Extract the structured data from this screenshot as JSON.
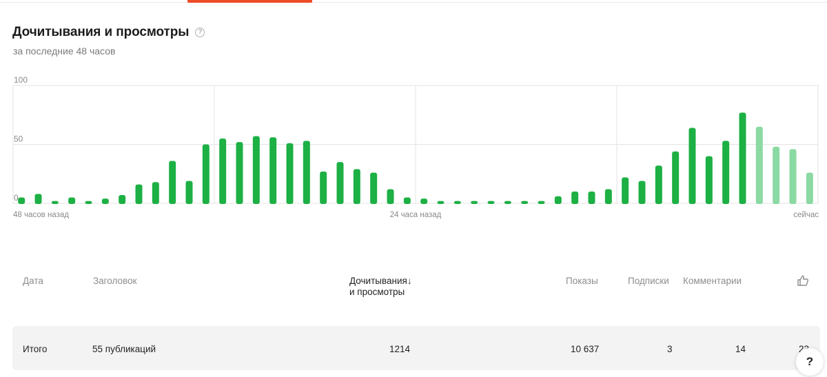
{
  "header": {
    "title": "Дочитывания и просмотры",
    "help_glyph": "?",
    "subtitle": "за последние 48 часов"
  },
  "chart_data": {
    "type": "bar",
    "title": "Дочитывания и просмотры",
    "subtitle": "за последние 48 часов",
    "ylim": [
      0,
      100
    ],
    "y_ticks": [
      "100",
      "50",
      "0"
    ],
    "x_tick_labels": [
      "48 часов назад",
      "24 часа назад",
      "сейчас"
    ],
    "grid": true,
    "colors": {
      "bar": "#1db044",
      "bar_partial": "#8bd9a3",
      "grid": "#e3e3e3"
    },
    "partial_from_index": 44,
    "values": [
      5,
      8,
      2,
      5,
      2,
      4,
      7,
      16,
      18,
      36,
      19,
      50,
      55,
      52,
      57,
      56,
      51,
      53,
      27,
      35,
      29,
      26,
      12,
      5,
      4,
      2,
      2,
      2,
      2,
      2,
      2,
      2,
      6,
      10,
      10,
      12,
      22,
      19,
      32,
      44,
      64,
      40,
      53,
      77,
      65,
      48,
      46,
      26
    ]
  },
  "table": {
    "columns": {
      "date": "Дата",
      "title": "Заголовок",
      "reads_line1": "Дочитывания",
      "reads_arrow": "↓",
      "reads_line2": "и просмотры",
      "impressions": "Показы",
      "subscriptions": "Подписки",
      "comments": "Комментарии",
      "likes_icon": "thumbs-up-icon"
    },
    "total": {
      "label": "Итого",
      "title": "55 публикаций",
      "reads": "1214",
      "impressions": "10 637",
      "subscriptions": "3",
      "comments": "14",
      "likes": "23"
    }
  },
  "help_button": {
    "label": "?"
  }
}
